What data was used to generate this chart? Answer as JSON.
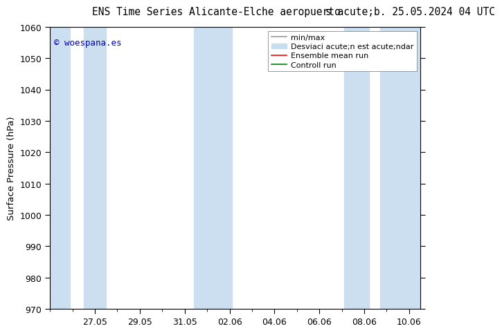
{
  "title_left": "ENS Time Series Alicante-Elche aeropuerto",
  "title_right": "s acute;b. 25.05.2024 04 UTC",
  "ylabel": "Surface Pressure (hPa)",
  "ylim": [
    970,
    1060
  ],
  "yticks": [
    970,
    980,
    990,
    1000,
    1010,
    1020,
    1030,
    1040,
    1050,
    1060
  ],
  "xtick_labels": [
    "27.05",
    "29.05",
    "31.05",
    "02.06",
    "04.06",
    "06.06",
    "08.06",
    "10.06"
  ],
  "watermark": "© woespana.es",
  "watermark_color": "#0000bb",
  "background_color": "#ffffff",
  "plot_bg_color": "#ffffff",
  "shade_color": "#ccdff0",
  "title_fontsize": 10.5,
  "tick_fontsize": 9,
  "legend_fontsize": 8
}
